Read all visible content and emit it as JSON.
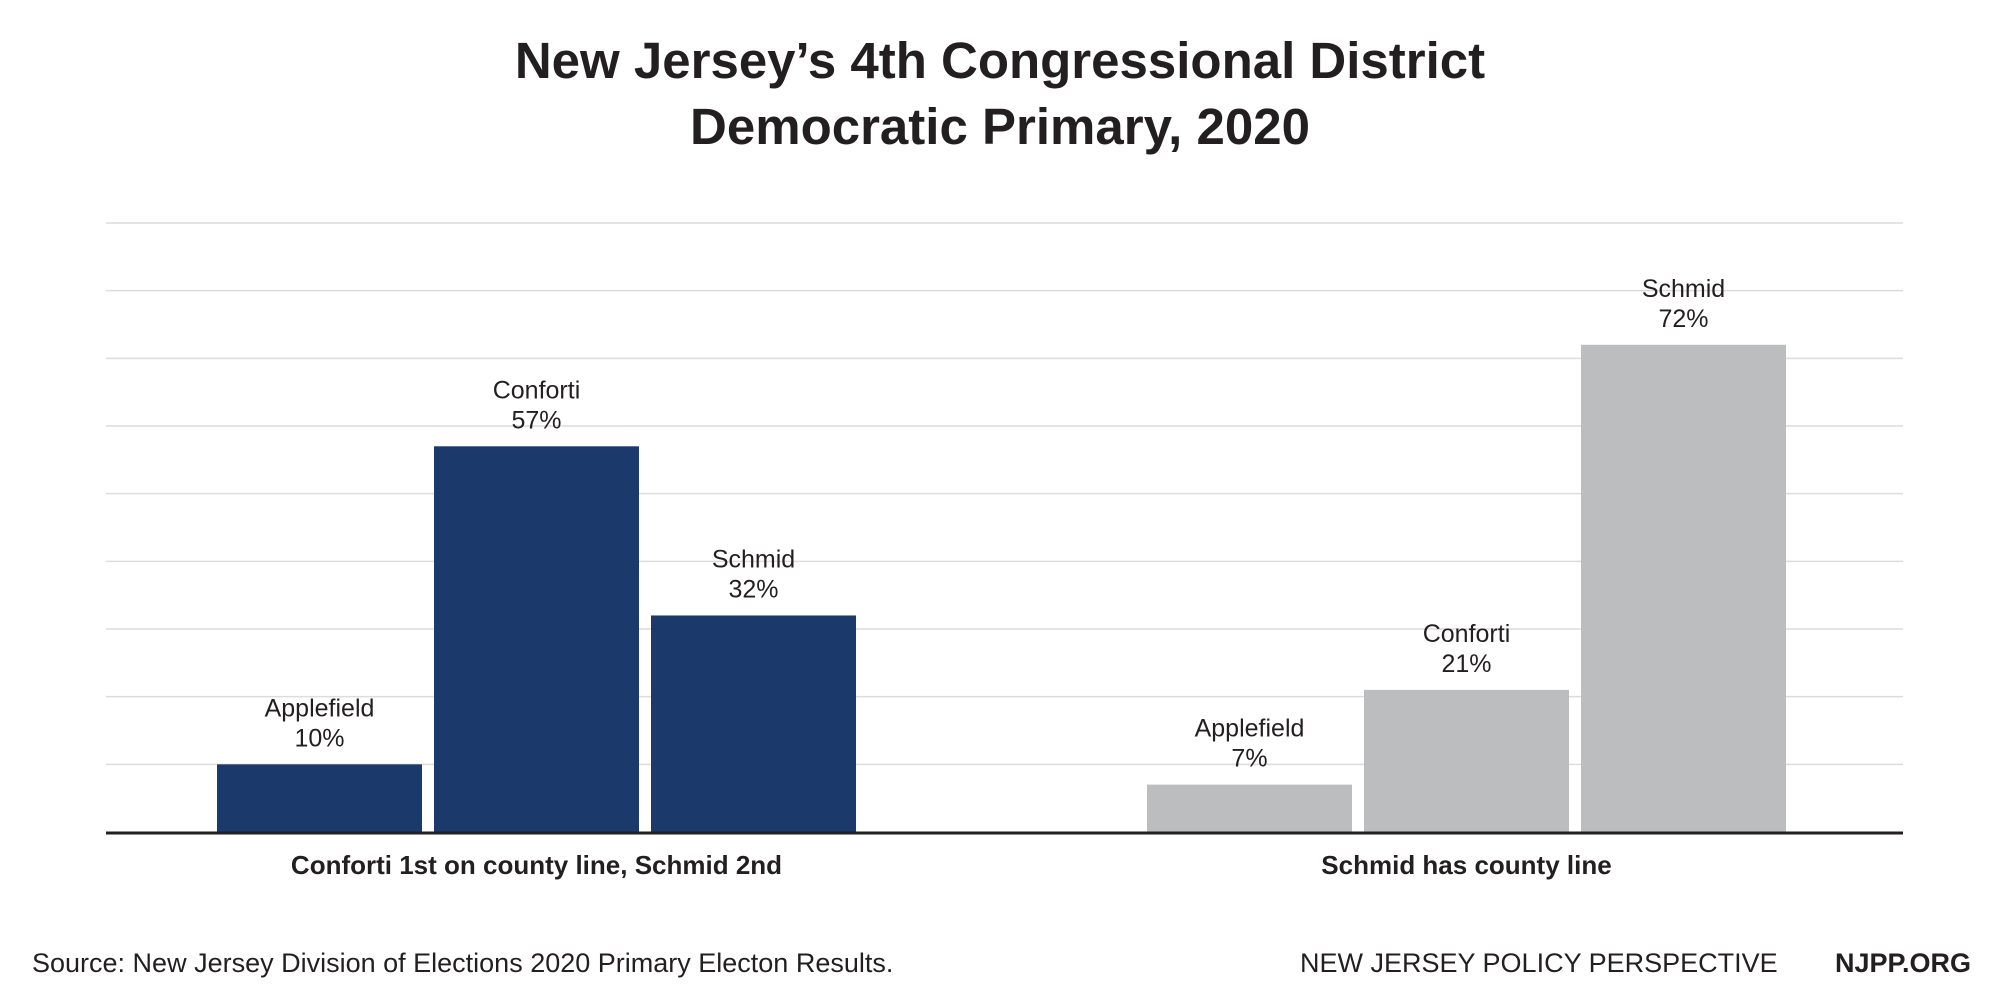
{
  "title_lines": [
    "New Jersey’s 4th Congressional District",
    "Democratic Primary, 2020"
  ],
  "source": "Source: New Jersey Division of Elections 2020 Primary Electon Results.",
  "org_name": "NEW JERSEY POLICY PERSPECTIVE",
  "org_url": "NJPP.ORG",
  "chart_data": {
    "type": "bar",
    "title": "New Jersey’s 4th Congressional District Democratic Primary, 2020",
    "ylim": [
      0,
      90
    ],
    "grid": true,
    "unit": "%",
    "groups": [
      {
        "label": "Conforti 1st on county line, Schmid 2nd",
        "color": "#1b3a6b",
        "bars": [
          {
            "name": "Applefield",
            "value": 10
          },
          {
            "name": "Conforti",
            "value": 57
          },
          {
            "name": "Schmid",
            "value": 32
          }
        ]
      },
      {
        "label": "Schmid has county line",
        "color": "#bcbdbf",
        "bars": [
          {
            "name": "Applefield",
            "value": 7
          },
          {
            "name": "Conforti",
            "value": 21
          },
          {
            "name": "Schmid",
            "value": 72
          }
        ]
      }
    ]
  }
}
